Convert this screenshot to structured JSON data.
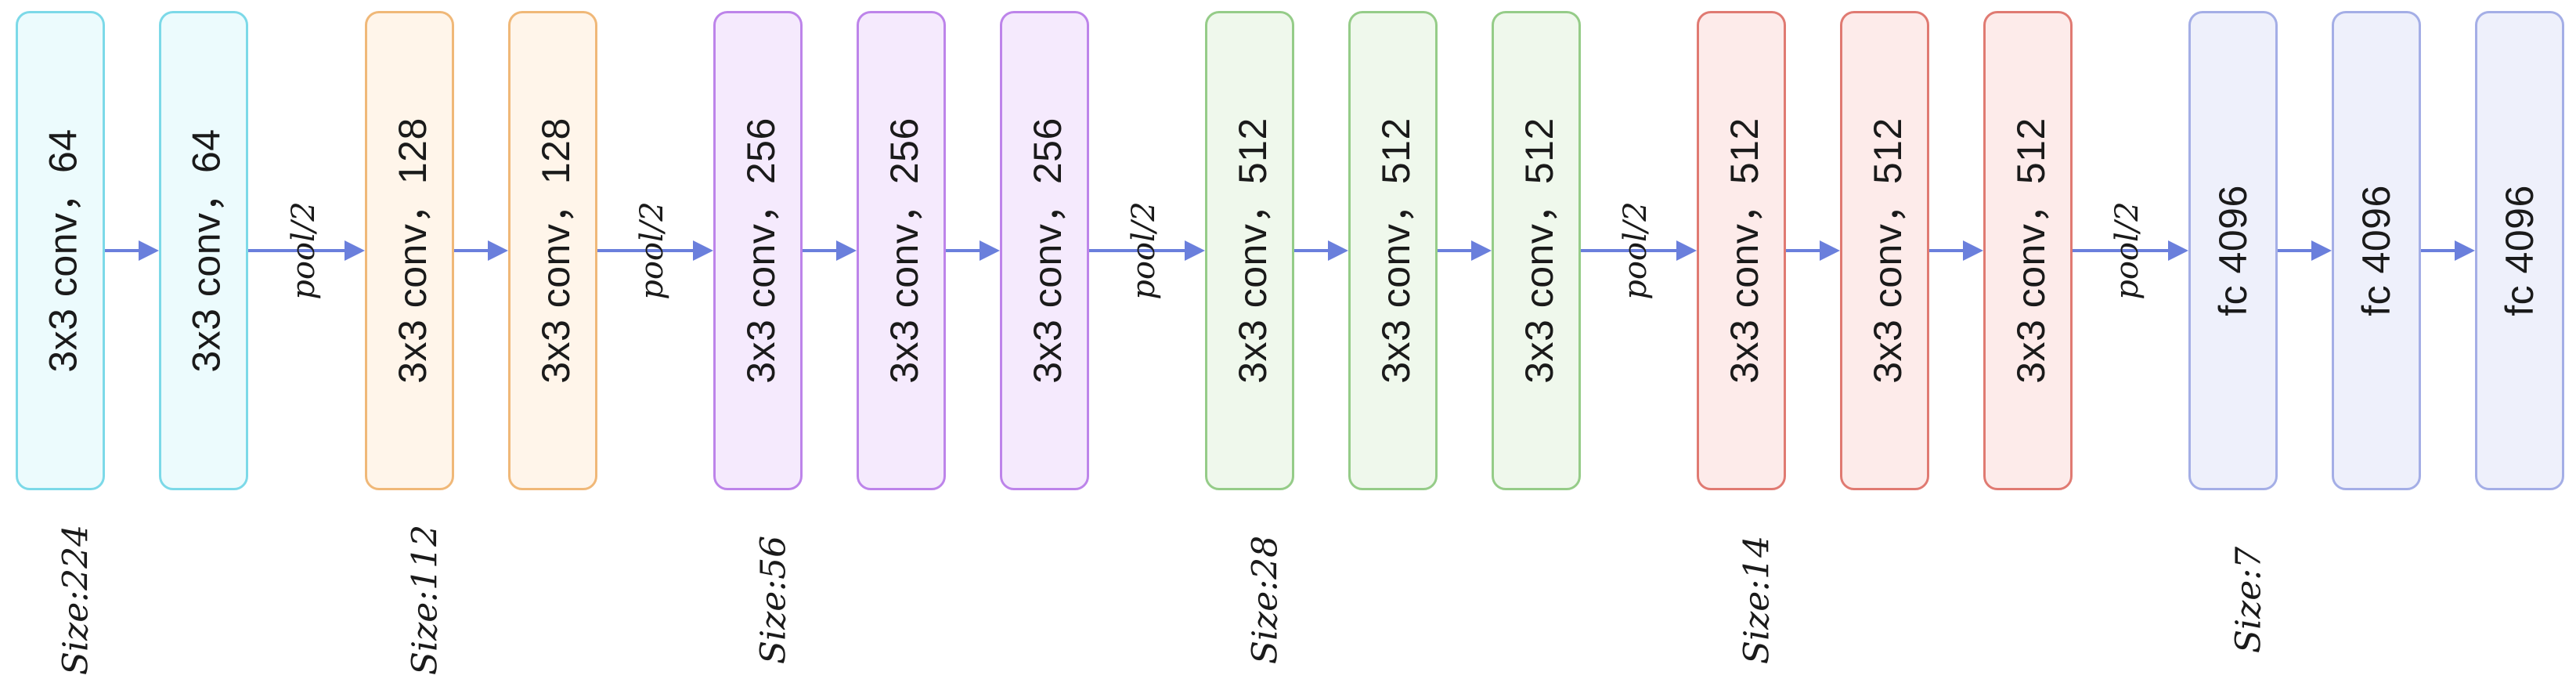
{
  "colors": {
    "arrow": "#6a7fdc",
    "cyan": "#7cd9e8",
    "orange": "#f0b878",
    "purple": "#bd84ea",
    "green": "#95cc88",
    "red": "#e07a72",
    "blue": "#a4aee6"
  },
  "layers": [
    {
      "label": "3x3 conv，64",
      "color": "cyan"
    },
    {
      "label": "3x3 conv，64",
      "color": "cyan"
    },
    {
      "label": "3x3 conv，128",
      "color": "orange"
    },
    {
      "label": "3x3 conv，128",
      "color": "orange"
    },
    {
      "label": "3x3 conv，256",
      "color": "purple"
    },
    {
      "label": "3x3 conv，256",
      "color": "purple"
    },
    {
      "label": "3x3 conv，256",
      "color": "purple"
    },
    {
      "label": "3x3 conv，512",
      "color": "green"
    },
    {
      "label": "3x3 conv，512",
      "color": "green"
    },
    {
      "label": "3x3 conv，512",
      "color": "green"
    },
    {
      "label": "3x3 conv，512",
      "color": "red"
    },
    {
      "label": "3x3 conv，512",
      "color": "red"
    },
    {
      "label": "3x3 conv，512",
      "color": "red"
    },
    {
      "label": "fc 4096",
      "color": "blue"
    },
    {
      "label": "fc 4096",
      "color": "blue"
    },
    {
      "label": "fc 4096",
      "color": "blue"
    }
  ],
  "pool_label": "pool/2",
  "size_labels": [
    "Size:224",
    "Size:112",
    "Size:56",
    "Size:28",
    "Size:14",
    "Size:7"
  ]
}
